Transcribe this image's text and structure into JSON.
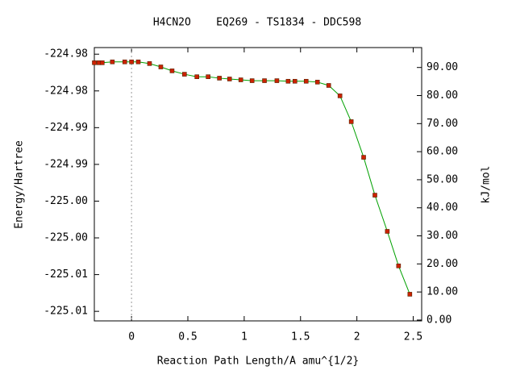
{
  "chart_data": {
    "type": "line",
    "title": "H4CN2O    EQ269 - TS1834 - DDC598",
    "x_label": "Reaction Path Length/A amu^{1/2}",
    "y_label": "Energy/Hartree",
    "y2_label": "kJ/mol",
    "x": [
      -0.33,
      -0.29,
      -0.26,
      -0.17,
      -0.06,
      0.0,
      0.06,
      0.16,
      0.26,
      0.36,
      0.47,
      0.58,
      0.68,
      0.78,
      0.87,
      0.97,
      1.07,
      1.18,
      1.29,
      1.39,
      1.45,
      1.55,
      1.65,
      1.75,
      1.85,
      1.95,
      2.06,
      2.16,
      2.27,
      2.37,
      2.47
    ],
    "series": [
      {
        "name": "Energy",
        "axis": "y2",
        "color": "#00a000",
        "marker_color": "#cc2200",
        "values": [
          91.7,
          91.7,
          91.7,
          92.0,
          92.0,
          92.0,
          92.0,
          91.4,
          90.2,
          88.8,
          87.6,
          86.7,
          86.7,
          86.2,
          85.9,
          85.6,
          85.3,
          85.3,
          85.3,
          85.1,
          85.1,
          85.1,
          84.8,
          83.6,
          79.9,
          70.7,
          58.0,
          44.5,
          31.6,
          19.3,
          9.2
        ]
      }
    ],
    "vline_x": 0,
    "xlim": [
      -0.33,
      2.575
    ],
    "xticks": [
      0,
      0.5,
      1,
      1.5,
      2,
      2.5
    ],
    "ylim": [
      -225.0138,
      -224.9766
    ],
    "yticks": [
      {
        "value": -224.9775,
        "label": "-224.98"
      },
      {
        "value": -224.9825,
        "label": "-224.98"
      },
      {
        "value": -224.9875,
        "label": "-224.99"
      },
      {
        "value": -224.9925,
        "label": "-224.99"
      },
      {
        "value": -224.9975,
        "label": "-225.00"
      },
      {
        "value": -225.0025,
        "label": "-225.00"
      },
      {
        "value": -225.0075,
        "label": "-225.01"
      },
      {
        "value": -225.0125,
        "label": "-225.01"
      }
    ],
    "y2lim": [
      -0.3,
      97.1
    ],
    "y2ticks": [
      {
        "value": 0,
        "label": "0.00"
      },
      {
        "value": 10,
        "label": "10.00"
      },
      {
        "value": 20,
        "label": "20.00"
      },
      {
        "value": 30,
        "label": "30.00"
      },
      {
        "value": 40,
        "label": "40.00"
      },
      {
        "value": 50,
        "label": "50.00"
      },
      {
        "value": 60,
        "label": "60.00"
      },
      {
        "value": 70,
        "label": "70.00"
      },
      {
        "value": 80,
        "label": "80.00"
      },
      {
        "value": 90,
        "label": "90.00"
      }
    ]
  }
}
